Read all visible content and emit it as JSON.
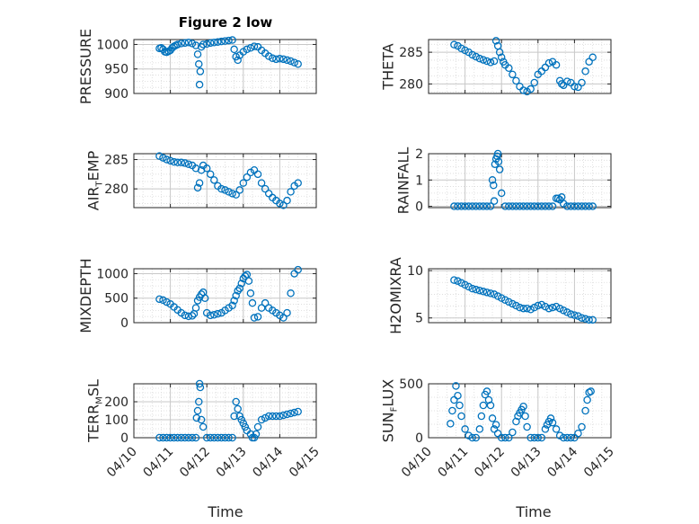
{
  "figure": {
    "title": "Figure 2 low",
    "marker_color": "#0072BD",
    "grid": true,
    "minor_grid": true
  },
  "chart_data": [
    {
      "type": "scatter",
      "ylabel": "PRESSURE",
      "ylabel_sub": "",
      "ylabel_tail": "",
      "ylim": [
        900,
        1010
      ],
      "yticks": [
        900,
        950,
        1000
      ],
      "ytick_labels": [
        "900",
        "950",
        "1000"
      ],
      "xlim": [
        0,
        5
      ],
      "xtick_labels": [],
      "x": [
        0.7,
        0.75,
        0.8,
        0.85,
        0.9,
        0.95,
        1.0,
        1.05,
        1.1,
        1.15,
        1.2,
        1.3,
        1.4,
        1.5,
        1.6,
        1.7,
        1.75,
        1.78,
        1.8,
        1.82,
        1.85,
        1.9,
        2.0,
        2.1,
        2.2,
        2.3,
        2.4,
        2.5,
        2.6,
        2.7,
        2.75,
        2.8,
        2.85,
        2.9,
        3.0,
        3.1,
        3.2,
        3.3,
        3.4,
        3.5,
        3.6,
        3.7,
        3.8,
        3.9,
        4.0,
        4.1,
        4.2,
        4.3,
        4.4,
        4.5
      ],
      "y": [
        992,
        993,
        990,
        985,
        984,
        986,
        988,
        993,
        996,
        998,
        1000,
        1002,
        1003,
        1004,
        1002,
        998,
        980,
        960,
        918,
        945,
        995,
        1000,
        1001,
        1003,
        1004,
        1005,
        1006,
        1007,
        1008,
        1009,
        990,
        975,
        968,
        978,
        985,
        990,
        993,
        996,
        995,
        988,
        982,
        976,
        972,
        970,
        971,
        970,
        968,
        966,
        963,
        960
      ]
    },
    {
      "type": "scatter",
      "ylabel": "THETA",
      "ylabel_sub": "",
      "ylabel_tail": "",
      "ylim": [
        278.5,
        287
      ],
      "yticks": [
        280,
        285
      ],
      "ytick_labels": [
        "280",
        "285"
      ],
      "xlim": [
        0,
        5
      ],
      "xtick_labels": [],
      "x": [
        0.7,
        0.8,
        0.9,
        1.0,
        1.1,
        1.2,
        1.3,
        1.4,
        1.5,
        1.6,
        1.7,
        1.8,
        1.85,
        1.9,
        1.95,
        2.0,
        2.05,
        2.1,
        2.2,
        2.3,
        2.4,
        2.5,
        2.6,
        2.7,
        2.8,
        2.9,
        3.0,
        3.1,
        3.2,
        3.3,
        3.4,
        3.5,
        3.6,
        3.65,
        3.7,
        3.8,
        3.9,
        4.0,
        4.1,
        4.2,
        4.3,
        4.4,
        4.5
      ],
      "y": [
        286.2,
        286.0,
        285.6,
        285.3,
        285.0,
        284.6,
        284.3,
        284.0,
        283.8,
        283.6,
        283.4,
        283.6,
        286.8,
        286.0,
        285.0,
        284.2,
        283.5,
        283.0,
        282.5,
        281.5,
        280.5,
        279.6,
        279.0,
        278.8,
        279.2,
        280.2,
        281.5,
        282.0,
        282.6,
        283.3,
        283.5,
        283.0,
        280.5,
        280.0,
        279.8,
        280.4,
        280.2,
        279.6,
        279.5,
        280.2,
        282.0,
        283.5,
        284.2
      ]
    },
    {
      "type": "scatter",
      "ylabel": "AIR",
      "ylabel_sub": "T",
      "ylabel_tail": "EMP",
      "ylim": [
        276.8,
        286
      ],
      "yticks": [
        280,
        285
      ],
      "ytick_labels": [
        "280",
        "285"
      ],
      "xlim": [
        0,
        5
      ],
      "xtick_labels": [],
      "x": [
        0.7,
        0.8,
        0.9,
        1.0,
        1.1,
        1.2,
        1.3,
        1.4,
        1.5,
        1.6,
        1.7,
        1.75,
        1.8,
        1.85,
        1.9,
        2.0,
        2.1,
        2.2,
        2.3,
        2.4,
        2.5,
        2.6,
        2.7,
        2.8,
        2.9,
        3.0,
        3.1,
        3.2,
        3.3,
        3.4,
        3.5,
        3.6,
        3.7,
        3.8,
        3.9,
        4.0,
        4.1,
        4.2,
        4.3,
        4.4,
        4.5
      ],
      "y": [
        285.6,
        285.3,
        285.0,
        284.8,
        284.6,
        284.5,
        284.5,
        284.4,
        284.2,
        284.0,
        283.5,
        280.2,
        281.0,
        283.2,
        284.0,
        283.5,
        282.5,
        281.5,
        280.5,
        280.0,
        279.8,
        279.5,
        279.2,
        279.0,
        279.8,
        281.0,
        282.0,
        282.8,
        283.2,
        282.5,
        281.0,
        280.0,
        279.2,
        278.5,
        278.0,
        277.5,
        277.2,
        278.0,
        279.5,
        280.5,
        281.0
      ]
    },
    {
      "type": "scatter",
      "ylabel": "RAINFALL",
      "ylabel_sub": "",
      "ylabel_tail": "",
      "ylim": [
        -0.05,
        2
      ],
      "yticks": [
        0,
        1,
        2
      ],
      "ytick_labels": [
        "0",
        "1",
        "2"
      ],
      "xlim": [
        0,
        5
      ],
      "xtick_labels": [],
      "x": [
        0.7,
        0.8,
        0.9,
        1.0,
        1.1,
        1.2,
        1.3,
        1.4,
        1.5,
        1.6,
        1.7,
        1.75,
        1.78,
        1.8,
        1.82,
        1.85,
        1.88,
        1.9,
        1.92,
        1.95,
        2.0,
        2.1,
        2.2,
        2.3,
        2.4,
        2.5,
        2.6,
        2.7,
        2.8,
        2.9,
        3.0,
        3.1,
        3.2,
        3.3,
        3.4,
        3.5,
        3.55,
        3.6,
        3.65,
        3.7,
        3.8,
        3.9,
        4.0,
        4.1,
        4.2,
        4.3,
        4.4,
        4.5
      ],
      "y": [
        0,
        0,
        0,
        0,
        0,
        0,
        0,
        0,
        0,
        0,
        0,
        1.0,
        0.8,
        0.2,
        1.6,
        1.8,
        1.9,
        2.0,
        1.7,
        1.4,
        0.5,
        0,
        0,
        0,
        0,
        0,
        0,
        0,
        0,
        0,
        0,
        0,
        0,
        0,
        0,
        0.3,
        0.3,
        0.25,
        0.35,
        0.1,
        0,
        0,
        0,
        0,
        0,
        0,
        0,
        0
      ]
    },
    {
      "type": "scatter",
      "ylabel": "MIXDEPTH",
      "ylabel_sub": "",
      "ylabel_tail": "",
      "ylim": [
        0,
        1100
      ],
      "yticks": [
        0,
        500,
        1000
      ],
      "ytick_labels": [
        "0",
        "500",
        "1000"
      ],
      "xlim": [
        0,
        5
      ],
      "xtick_labels": [],
      "x": [
        0.7,
        0.8,
        0.9,
        1.0,
        1.1,
        1.2,
        1.3,
        1.4,
        1.5,
        1.6,
        1.65,
        1.7,
        1.75,
        1.8,
        1.85,
        1.9,
        1.95,
        2.0,
        2.1,
        2.2,
        2.3,
        2.4,
        2.5,
        2.6,
        2.7,
        2.75,
        2.8,
        2.85,
        2.9,
        2.95,
        3.0,
        3.05,
        3.1,
        3.15,
        3.2,
        3.25,
        3.3,
        3.4,
        3.5,
        3.6,
        3.7,
        3.8,
        3.9,
        4.0,
        4.1,
        4.2,
        4.3,
        4.4,
        4.5
      ],
      "y": [
        480,
        460,
        420,
        380,
        320,
        260,
        200,
        150,
        130,
        140,
        180,
        300,
        450,
        520,
        580,
        620,
        500,
        200,
        150,
        160,
        180,
        200,
        250,
        300,
        350,
        450,
        550,
        650,
        700,
        800,
        900,
        950,
        980,
        850,
        600,
        400,
        100,
        120,
        300,
        400,
        300,
        250,
        200,
        150,
        100,
        200,
        600,
        1000,
        1080
      ]
    },
    {
      "type": "scatter",
      "ylabel": "H2OMIXRA",
      "ylabel_sub": "",
      "ylabel_tail": "",
      "ylim": [
        4.5,
        10.2
      ],
      "yticks": [
        5,
        10
      ],
      "ytick_labels": [
        "5",
        "10"
      ],
      "xlim": [
        0,
        5
      ],
      "xtick_labels": [],
      "x": [
        0.7,
        0.8,
        0.9,
        1.0,
        1.1,
        1.2,
        1.3,
        1.4,
        1.5,
        1.6,
        1.7,
        1.8,
        1.9,
        2.0,
        2.1,
        2.2,
        2.3,
        2.4,
        2.5,
        2.6,
        2.7,
        2.8,
        2.9,
        3.0,
        3.1,
        3.2,
        3.3,
        3.4,
        3.5,
        3.6,
        3.7,
        3.8,
        3.9,
        4.0,
        4.1,
        4.2,
        4.3,
        4.4,
        4.5
      ],
      "y": [
        9.0,
        8.9,
        8.7,
        8.5,
        8.3,
        8.1,
        8.0,
        7.9,
        7.8,
        7.7,
        7.6,
        7.5,
        7.3,
        7.1,
        6.9,
        6.7,
        6.5,
        6.3,
        6.1,
        6.0,
        6.0,
        5.9,
        6.1,
        6.3,
        6.4,
        6.2,
        6.0,
        6.1,
        6.2,
        6.0,
        5.8,
        5.6,
        5.4,
        5.3,
        5.2,
        5.0,
        4.9,
        4.8,
        4.8
      ]
    },
    {
      "type": "scatter",
      "ylabel": "TERR",
      "ylabel_sub": "M",
      "ylabel_tail": "SL",
      "ylim": [
        0,
        300
      ],
      "yticks": [
        0,
        100,
        200
      ],
      "ytick_labels": [
        "0",
        "100",
        "200"
      ],
      "xlim": [
        0,
        5
      ],
      "xtick_labels": [
        "04/10",
        "04/11",
        "04/12",
        "04/13",
        "04/14",
        "04/15"
      ],
      "x": [
        0.7,
        0.8,
        0.9,
        1.0,
        1.1,
        1.2,
        1.3,
        1.4,
        1.5,
        1.6,
        1.7,
        1.72,
        1.75,
        1.78,
        1.8,
        1.82,
        1.85,
        1.9,
        2.0,
        2.1,
        2.2,
        2.3,
        2.4,
        2.5,
        2.6,
        2.7,
        2.75,
        2.8,
        2.85,
        2.9,
        2.95,
        3.0,
        3.05,
        3.1,
        3.2,
        3.25,
        3.3,
        3.35,
        3.4,
        3.5,
        3.6,
        3.7,
        3.8,
        3.9,
        4.0,
        4.1,
        4.2,
        4.3,
        4.4,
        4.5
      ],
      "y": [
        0,
        0,
        0,
        0,
        0,
        0,
        0,
        0,
        0,
        0,
        0,
        110,
        150,
        200,
        300,
        280,
        100,
        60,
        0,
        0,
        0,
        0,
        0,
        0,
        0,
        0,
        120,
        200,
        160,
        120,
        100,
        80,
        60,
        40,
        20,
        0,
        0,
        20,
        60,
        100,
        110,
        120,
        120,
        120,
        120,
        125,
        130,
        135,
        140,
        145
      ]
    },
    {
      "type": "scatter",
      "ylabel": "SUN",
      "ylabel_sub": "F",
      "ylabel_tail": "LUX",
      "ylim": [
        0,
        500
      ],
      "yticks": [
        0,
        500
      ],
      "ytick_labels": [
        "0",
        "500"
      ],
      "xlim": [
        0,
        5
      ],
      "xtick_labels": [
        "04/10",
        "04/11",
        "04/12",
        "04/13",
        "04/14",
        "04/15"
      ],
      "x": [
        0.6,
        0.65,
        0.7,
        0.75,
        0.8,
        0.85,
        0.9,
        1.0,
        1.1,
        1.2,
        1.3,
        1.4,
        1.45,
        1.5,
        1.55,
        1.6,
        1.65,
        1.7,
        1.75,
        1.8,
        1.85,
        1.9,
        2.0,
        2.1,
        2.2,
        2.3,
        2.4,
        2.45,
        2.5,
        2.55,
        2.6,
        2.65,
        2.7,
        2.8,
        2.9,
        3.0,
        3.1,
        3.2,
        3.25,
        3.3,
        3.35,
        3.4,
        3.5,
        3.6,
        3.7,
        3.8,
        3.9,
        4.0,
        4.1,
        4.2,
        4.3,
        4.35,
        4.4,
        4.45
      ],
      "y": [
        130,
        250,
        350,
        480,
        390,
        300,
        200,
        80,
        20,
        0,
        0,
        80,
        200,
        300,
        400,
        430,
        350,
        300,
        180,
        80,
        120,
        40,
        0,
        0,
        0,
        50,
        150,
        200,
        230,
        260,
        290,
        200,
        100,
        0,
        0,
        0,
        0,
        80,
        120,
        150,
        180,
        140,
        80,
        20,
        0,
        0,
        0,
        0,
        40,
        100,
        250,
        350,
        420,
        430
      ]
    }
  ],
  "x_axis_label": "Time"
}
